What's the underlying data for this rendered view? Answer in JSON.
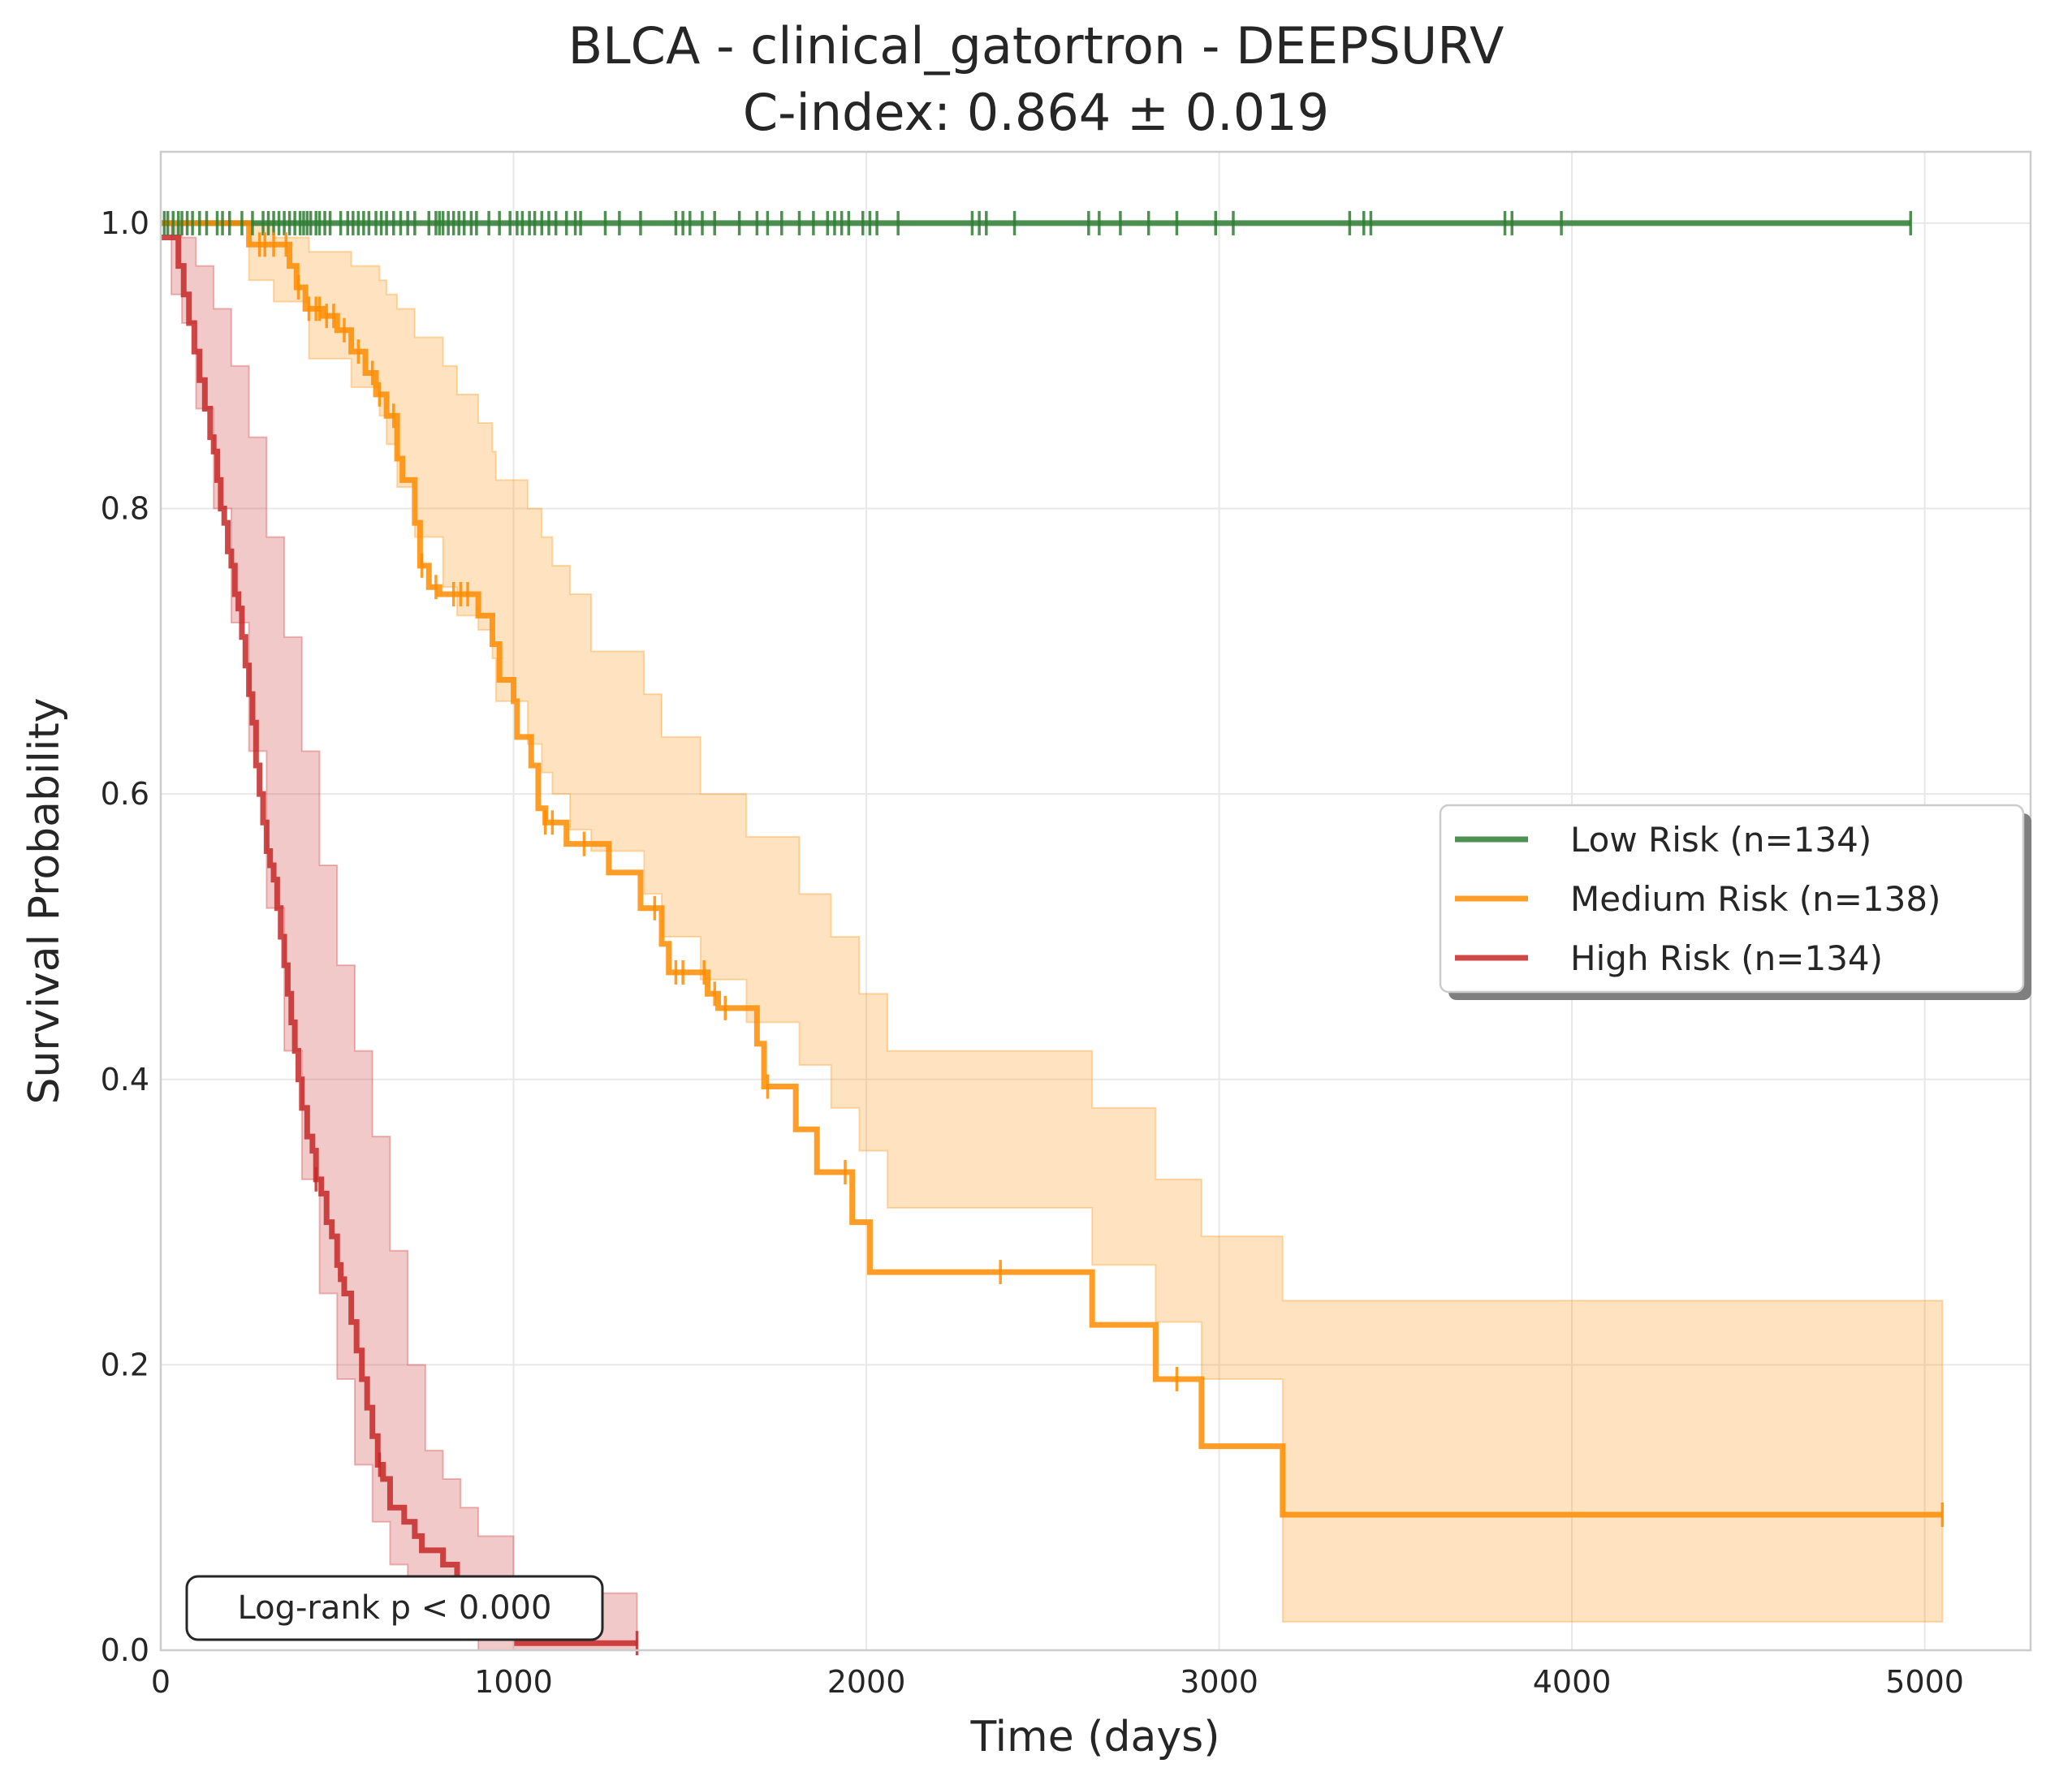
{
  "chart_data": {
    "type": "line",
    "title_line1": "BLCA - clinical_gatortron - DEEPSURV",
    "title_line2": "C-index: 0.864 ± 0.019",
    "xlabel": "Time (days)",
    "ylabel": "Survival Probability",
    "xlim": [
      0,
      5300
    ],
    "ylim": [
      0,
      1.05
    ],
    "x_ticks": [
      0,
      1000,
      2000,
      3000,
      4000,
      5000
    ],
    "x_tick_labels": [
      "0",
      "1000",
      "2000",
      "3000",
      "4000",
      "5000"
    ],
    "y_ticks": [
      0,
      0.2,
      0.4,
      0.6,
      0.8,
      1.0
    ],
    "y_tick_labels": [
      "0.0",
      "0.2",
      "0.4",
      "0.6",
      "0.8",
      "1.0"
    ],
    "grid": true,
    "legend_position": "center-right",
    "annotation": "Log-rank p < 0.000",
    "series": [
      {
        "name": "Low Risk (n=134)",
        "color": "#2e7d32",
        "steps": [
          [
            0,
            1.0
          ],
          [
            4960,
            1.0
          ]
        ],
        "censor_times": [
          10,
          20,
          35,
          50,
          60,
          75,
          90,
          110,
          130,
          160,
          175,
          195,
          230,
          260,
          290,
          305,
          320,
          335,
          350,
          365,
          380,
          395,
          405,
          415,
          425,
          440,
          450,
          465,
          480,
          510,
          530,
          545,
          560,
          575,
          590,
          610,
          625,
          640,
          660,
          680,
          700,
          720,
          760,
          780,
          790,
          800,
          815,
          830,
          845,
          860,
          880,
          895,
          930,
          960,
          990,
          1010,
          1025,
          1045,
          1060,
          1080,
          1100,
          1120,
          1150,
          1175,
          1190,
          1260,
          1300,
          1360,
          1460,
          1480,
          1500,
          1535,
          1570,
          1640,
          1690,
          1720,
          1760,
          1810,
          1850,
          1890,
          1910,
          1930,
          1950,
          1990,
          2010,
          2030,
          2090,
          2300,
          2320,
          2340,
          2420,
          2630,
          2660,
          2720,
          2800,
          2880,
          2990,
          3040,
          3370,
          3410,
          3430,
          3810,
          3830,
          3970,
          4960
        ]
      },
      {
        "name": "Medium Risk (n=138)",
        "color": "#ff8c00",
        "steps": [
          [
            0,
            1.0
          ],
          [
            250,
            0.985
          ],
          [
            310,
            0.985
          ],
          [
            365,
            0.97
          ],
          [
            385,
            0.955
          ],
          [
            410,
            0.94
          ],
          [
            460,
            0.935
          ],
          [
            500,
            0.925
          ],
          [
            540,
            0.91
          ],
          [
            580,
            0.895
          ],
          [
            610,
            0.88
          ],
          [
            640,
            0.865
          ],
          [
            670,
            0.835
          ],
          [
            685,
            0.82
          ],
          [
            720,
            0.79
          ],
          [
            735,
            0.76
          ],
          [
            760,
            0.745
          ],
          [
            790,
            0.74
          ],
          [
            900,
            0.725
          ],
          [
            940,
            0.705
          ],
          [
            960,
            0.68
          ],
          [
            1000,
            0.665
          ],
          [
            1010,
            0.64
          ],
          [
            1050,
            0.62
          ],
          [
            1070,
            0.59
          ],
          [
            1090,
            0.58
          ],
          [
            1150,
            0.565
          ],
          [
            1270,
            0.545
          ],
          [
            1360,
            0.52
          ],
          [
            1420,
            0.495
          ],
          [
            1440,
            0.475
          ],
          [
            1550,
            0.46
          ],
          [
            1580,
            0.45
          ],
          [
            1690,
            0.425
          ],
          [
            1710,
            0.395
          ],
          [
            1800,
            0.365
          ],
          [
            1860,
            0.335
          ],
          [
            1960,
            0.3
          ],
          [
            2010,
            0.265
          ],
          [
            2640,
            0.228
          ],
          [
            2820,
            0.19
          ],
          [
            2950,
            0.143
          ],
          [
            3180,
            0.095
          ],
          [
            5050,
            0.095
          ]
        ],
        "ci_steps": [
          [
            0,
            1.0,
            1.0
          ],
          [
            250,
            1.0,
            0.96
          ],
          [
            320,
            0.99,
            0.945
          ],
          [
            420,
            0.98,
            0.905
          ],
          [
            540,
            0.97,
            0.885
          ],
          [
            620,
            0.96,
            0.865
          ],
          [
            640,
            0.95,
            0.845
          ],
          [
            670,
            0.94,
            0.815
          ],
          [
            720,
            0.92,
            0.78
          ],
          [
            800,
            0.9,
            0.745
          ],
          [
            840,
            0.88,
            0.725
          ],
          [
            900,
            0.86,
            0.715
          ],
          [
            940,
            0.84,
            0.695
          ],
          [
            950,
            0.82,
            0.665
          ],
          [
            1040,
            0.8,
            0.635
          ],
          [
            1080,
            0.78,
            0.615
          ],
          [
            1110,
            0.76,
            0.6
          ],
          [
            1160,
            0.74,
            0.575
          ],
          [
            1220,
            0.7,
            0.56
          ],
          [
            1370,
            0.67,
            0.53
          ],
          [
            1420,
            0.64,
            0.5
          ],
          [
            1530,
            0.6,
            0.47
          ],
          [
            1660,
            0.57,
            0.44
          ],
          [
            1810,
            0.53,
            0.41
          ],
          [
            1900,
            0.5,
            0.38
          ],
          [
            1980,
            0.46,
            0.35
          ],
          [
            2060,
            0.42,
            0.31
          ],
          [
            2640,
            0.38,
            0.27
          ],
          [
            2820,
            0.33,
            0.23
          ],
          [
            2950,
            0.29,
            0.19
          ],
          [
            3180,
            0.245,
            0.02
          ],
          [
            5050,
            0.245,
            0.02
          ]
        ],
        "censor_times": [
          280,
          295,
          320,
          355,
          390,
          420,
          440,
          450,
          470,
          490,
          520,
          560,
          600,
          620,
          660,
          740,
          780,
          830,
          850,
          870,
          1090,
          1110,
          1200,
          1400,
          1460,
          1480,
          1540,
          1570,
          1600,
          1720,
          1940,
          2380,
          2880,
          5050
        ]
      },
      {
        "name": "High Risk (n=134)",
        "color": "#c62828",
        "steps": [
          [
            0,
            0.99
          ],
          [
            50,
            0.97
          ],
          [
            65,
            0.95
          ],
          [
            80,
            0.93
          ],
          [
            95,
            0.91
          ],
          [
            110,
            0.89
          ],
          [
            125,
            0.87
          ],
          [
            140,
            0.85
          ],
          [
            150,
            0.84
          ],
          [
            160,
            0.82
          ],
          [
            170,
            0.8
          ],
          [
            180,
            0.79
          ],
          [
            190,
            0.77
          ],
          [
            200,
            0.76
          ],
          [
            210,
            0.74
          ],
          [
            220,
            0.73
          ],
          [
            230,
            0.71
          ],
          [
            240,
            0.69
          ],
          [
            250,
            0.67
          ],
          [
            260,
            0.65
          ],
          [
            270,
            0.62
          ],
          [
            280,
            0.6
          ],
          [
            290,
            0.58
          ],
          [
            300,
            0.56
          ],
          [
            310,
            0.55
          ],
          [
            320,
            0.54
          ],
          [
            330,
            0.52
          ],
          [
            340,
            0.5
          ],
          [
            350,
            0.48
          ],
          [
            360,
            0.46
          ],
          [
            370,
            0.44
          ],
          [
            380,
            0.42
          ],
          [
            390,
            0.4
          ],
          [
            400,
            0.38
          ],
          [
            415,
            0.36
          ],
          [
            430,
            0.35
          ],
          [
            440,
            0.33
          ],
          [
            455,
            0.32
          ],
          [
            470,
            0.3
          ],
          [
            485,
            0.29
          ],
          [
            500,
            0.27
          ],
          [
            510,
            0.26
          ],
          [
            520,
            0.25
          ],
          [
            540,
            0.23
          ],
          [
            555,
            0.21
          ],
          [
            570,
            0.19
          ],
          [
            585,
            0.17
          ],
          [
            600,
            0.15
          ],
          [
            615,
            0.13
          ],
          [
            630,
            0.12
          ],
          [
            650,
            0.1
          ],
          [
            690,
            0.09
          ],
          [
            720,
            0.08
          ],
          [
            740,
            0.07
          ],
          [
            800,
            0.06
          ],
          [
            840,
            0.05
          ],
          [
            860,
            0.04
          ],
          [
            900,
            0.03
          ],
          [
            950,
            0.02
          ],
          [
            1010,
            0.005
          ],
          [
            1350,
            0.005
          ]
        ],
        "ci_steps": [
          [
            0,
            1.0,
            1.0
          ],
          [
            30,
            1.0,
            0.95
          ],
          [
            60,
            0.99,
            0.93
          ],
          [
            100,
            0.97,
            0.87
          ],
          [
            150,
            0.94,
            0.8
          ],
          [
            200,
            0.9,
            0.72
          ],
          [
            250,
            0.85,
            0.63
          ],
          [
            300,
            0.78,
            0.52
          ],
          [
            350,
            0.71,
            0.42
          ],
          [
            400,
            0.63,
            0.33
          ],
          [
            450,
            0.55,
            0.25
          ],
          [
            500,
            0.48,
            0.19
          ],
          [
            550,
            0.42,
            0.13
          ],
          [
            600,
            0.36,
            0.09
          ],
          [
            650,
            0.28,
            0.06
          ],
          [
            700,
            0.2,
            0.04
          ],
          [
            750,
            0.14,
            0.03
          ],
          [
            800,
            0.12,
            0.015
          ],
          [
            850,
            0.1,
            0.01
          ],
          [
            900,
            0.08,
            0.0
          ],
          [
            1000,
            0.04,
            0.0
          ],
          [
            1350,
            0.04,
            0.0
          ]
        ],
        "censor_times": [
          440,
          620,
          870,
          1350
        ]
      }
    ]
  }
}
